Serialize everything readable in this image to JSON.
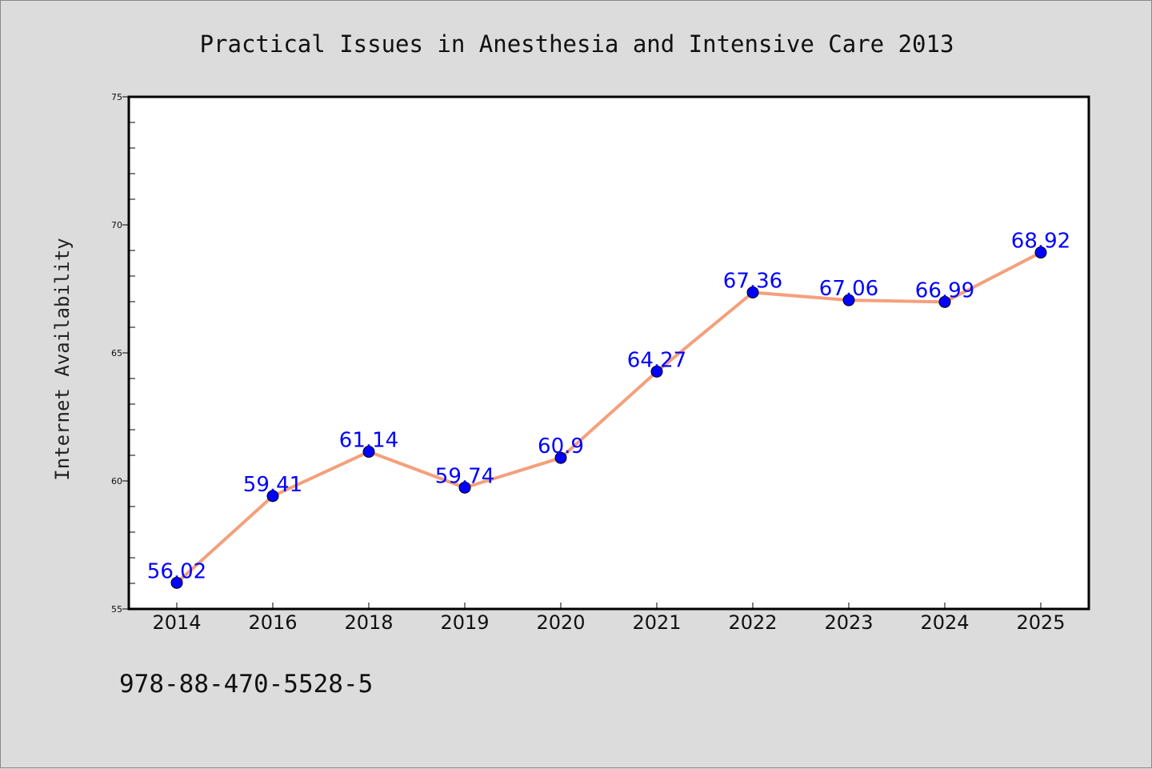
{
  "chart_data": {
    "type": "line",
    "title": "Practical Issues in Anesthesia and Intensive Care 2013",
    "xlabel": "",
    "ylabel": "Internet Availability",
    "categories": [
      "2014",
      "2016",
      "2018",
      "2019",
      "2020",
      "2021",
      "2022",
      "2023",
      "2024",
      "2025"
    ],
    "series": [
      {
        "values": [
          56.02,
          59.41,
          61.14,
          59.74,
          60.9,
          64.27,
          67.36,
          67.06,
          66.99,
          68.92
        ],
        "labels": [
          "56.02",
          "59.41",
          "61.14",
          "59.74",
          "60.9",
          "64.27",
          "67.36",
          "67.06",
          "66.99",
          "68.92"
        ]
      }
    ],
    "ylim": [
      55,
      75
    ],
    "yticks": [
      "55",
      "60",
      "65",
      "70",
      "75"
    ],
    "grid": false,
    "legend": "none",
    "colors": {
      "line": "#f4a07c",
      "marker": "#0000ff",
      "label": "#0000ff",
      "plot_background": "#ffffff",
      "page_background": "#dcdcdc"
    }
  },
  "footer_text": "978-88-470-5528-5"
}
